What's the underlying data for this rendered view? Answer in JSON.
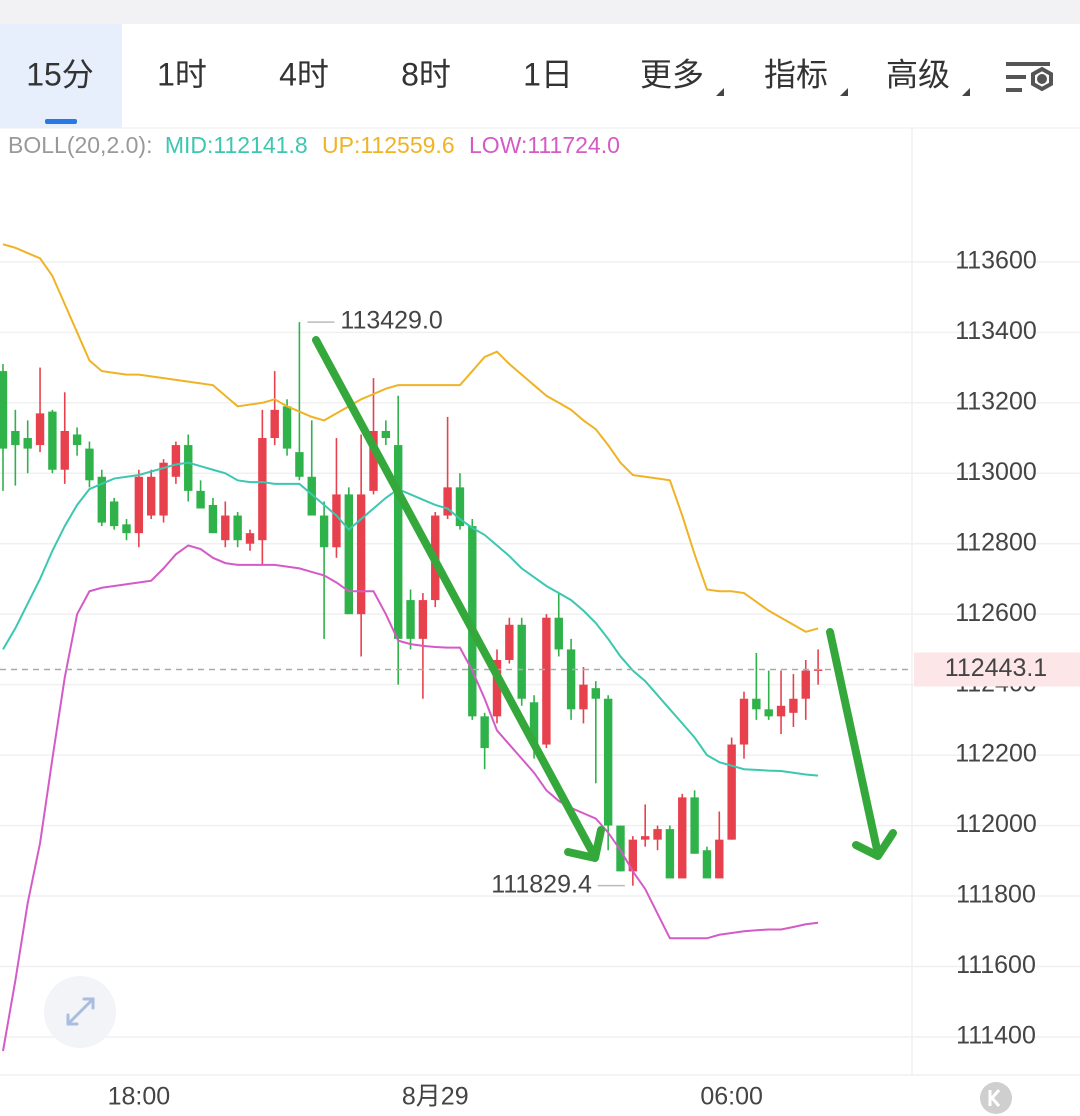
{
  "tabs": [
    "15分",
    "1时",
    "4时",
    "8时",
    "1日",
    "更多",
    "指标",
    "高级"
  ],
  "active_tab": 0,
  "indicator": "BOLL(20,2.0):",
  "chart_data": {
    "type": "candlestick",
    "categories": [
      null,
      null,
      null,
      null,
      null,
      null,
      null,
      null,
      null,
      null,
      null,
      "18:00",
      null,
      null,
      null,
      null,
      null,
      null,
      null,
      null,
      null,
      null,
      null,
      null,
      null,
      null,
      null,
      null,
      null,
      null,
      null,
      null,
      null,
      null,
      null,
      "8月29",
      null,
      null,
      null,
      null,
      null,
      null,
      null,
      null,
      null,
      null,
      null,
      null,
      null,
      null,
      null,
      null,
      null,
      null,
      null,
      null,
      null,
      null,
      null,
      "06:00",
      null,
      null,
      null,
      null,
      null,
      null,
      null
    ],
    "open": [
      113290,
      113120,
      113100,
      113080,
      113175,
      113010,
      113110,
      113070,
      112990,
      112920,
      112855,
      112830,
      112880,
      112880,
      112990,
      113080,
      112950,
      112910,
      112810,
      112880,
      112800,
      112810,
      113100,
      113190,
      113060,
      112990,
      112880,
      112790,
      112940,
      112600,
      112950,
      113120,
      113080,
      112640,
      112530,
      112640,
      112880,
      112960,
      112850,
      112310,
      112310,
      112470,
      112570,
      112350,
      112230,
      112590,
      112500,
      112330,
      112390,
      112360,
      112000,
      111870,
      111960,
      111960,
      111990,
      111850,
      112080,
      111930,
      111850,
      111960,
      112230,
      112360,
      112330,
      112310,
      112320,
      112360,
      112440
    ],
    "high": [
      113310,
      113180,
      113150,
      113300,
      113180,
      113230,
      113130,
      113090,
      113010,
      112930,
      112870,
      113010,
      113010,
      113040,
      113090,
      113110,
      112980,
      112930,
      112920,
      112890,
      112840,
      113180,
      113290,
      113210,
      113429,
      113150,
      112920,
      113100,
      112960,
      113110,
      113270,
      113150,
      113220,
      112670,
      112660,
      112890,
      113160,
      113000,
      112870,
      112320,
      112500,
      112590,
      112590,
      112370,
      112600,
      112660,
      112530,
      112450,
      112410,
      112370,
      112000,
      111970,
      112060,
      112000,
      112000,
      112090,
      112100,
      111940,
      112040,
      112250,
      112380,
      112490,
      112440,
      112440,
      112430,
      112470,
      112500
    ],
    "low": [
      112950,
      112965,
      113000,
      113060,
      113000,
      112970,
      113050,
      112960,
      112850,
      112840,
      112810,
      112790,
      112870,
      112860,
      112970,
      112920,
      112900,
      112830,
      112790,
      112790,
      112780,
      112740,
      113080,
      113050,
      112980,
      112880,
      112530,
      112760,
      112600,
      112480,
      112940,
      113080,
      112400,
      112500,
      112360,
      112620,
      112870,
      112840,
      112300,
      112160,
      112290,
      112460,
      112340,
      112190,
      112220,
      112480,
      112300,
      112290,
      112120,
      111930,
      111870,
      111829.4,
      111940,
      111930,
      111850,
      111850,
      111920,
      111850,
      111850,
      111960,
      112190,
      112300,
      112300,
      112260,
      112280,
      112300,
      112400
    ],
    "close": [
      113070,
      113080,
      113070,
      113170,
      113010,
      113120,
      113080,
      112980,
      112860,
      112850,
      112830,
      112990,
      112990,
      113030,
      113080,
      112950,
      112900,
      112830,
      112880,
      112810,
      112830,
      113100,
      113180,
      113070,
      112990,
      112880,
      112790,
      112940,
      112600,
      112940,
      113120,
      113100,
      112530,
      112530,
      112640,
      112880,
      112960,
      112850,
      112310,
      112220,
      112470,
      112570,
      112360,
      112230,
      112590,
      112500,
      112330,
      112400,
      112360,
      112000,
      111870,
      111960,
      111970,
      111990,
      111850,
      112080,
      111920,
      111850,
      111960,
      112230,
      112360,
      112330,
      112310,
      112340,
      112360,
      112440,
      112443.1
    ],
    "up_color": "#e8414e",
    "down_color": "#2fb24a",
    "series": [
      {
        "name": "MID:",
        "last_label": "112141.8",
        "color": "#3cc7b0",
        "values": [
          112500,
          112560,
          112630,
          112700,
          112780,
          112850,
          112910,
          112955,
          112970,
          112985,
          112990,
          112995,
          113005,
          113015,
          113025,
          113030,
          113020,
          113010,
          113000,
          112980,
          112975,
          112975,
          112970,
          112970,
          112970,
          112940,
          112910,
          112880,
          112840,
          112870,
          112900,
          112930,
          112955,
          112940,
          112925,
          112910,
          112900,
          112870,
          112845,
          112825,
          112795,
          112765,
          112730,
          112705,
          112680,
          112660,
          112640,
          112610,
          112575,
          112530,
          112480,
          112440,
          112410,
          112370,
          112330,
          112290,
          112250,
          112200,
          112180,
          112170,
          112160,
          112158,
          112156,
          112155,
          112150,
          112145,
          112141.8
        ]
      },
      {
        "name": "UP:",
        "last_label": "112559.6",
        "color": "#efb325",
        "values": [
          113650,
          113640,
          113625,
          113610,
          113560,
          113480,
          113400,
          113320,
          113290,
          113285,
          113280,
          113280,
          113275,
          113270,
          113265,
          113260,
          113255,
          113250,
          113220,
          113190,
          113195,
          113200,
          113210,
          113190,
          113175,
          113160,
          113150,
          113170,
          113190,
          113210,
          113225,
          113240,
          113250,
          113250,
          113250,
          113250,
          113250,
          113250,
          113290,
          113330,
          113345,
          113310,
          113280,
          113250,
          113220,
          113200,
          113180,
          113150,
          113125,
          113080,
          113030,
          112995,
          112990,
          112985,
          112980,
          112880,
          112770,
          112670,
          112665,
          112665,
          112660,
          112635,
          112610,
          112590,
          112570,
          112550,
          112559.6
        ]
      },
      {
        "name": "LOW:",
        "last_label": "111724.0",
        "color": "#d45bc6",
        "values": [
          111360,
          111560,
          111780,
          111950,
          112190,
          112420,
          112600,
          112665,
          112675,
          112680,
          112685,
          112690,
          112695,
          112730,
          112770,
          112795,
          112785,
          112760,
          112745,
          112740,
          112740,
          112740,
          112740,
          112735,
          112730,
          112720,
          112710,
          112690,
          112665,
          112665,
          112665,
          112600,
          112525,
          112515,
          112510,
          112507,
          112505,
          112505,
          112440,
          112360,
          112270,
          112230,
          112190,
          112150,
          112100,
          112070,
          112050,
          112035,
          112020,
          111980,
          111930,
          111870,
          111820,
          111750,
          111680,
          111680,
          111680,
          111680,
          111690,
          111695,
          111700,
          111703,
          111705,
          111705,
          111712,
          111720,
          111724
        ]
      }
    ],
    "ylim": [
      111292,
      113980
    ],
    "yticks": [
      111400,
      111600,
      111800,
      112000,
      112200,
      112400,
      112600,
      112800,
      113000,
      113200,
      113400,
      113600
    ],
    "grid": true,
    "current_price": 112443.1,
    "annotations": [
      {
        "index": 24,
        "value": 113429,
        "label": "113429.0",
        "side": "right"
      },
      {
        "index": 51,
        "value": 111829.4,
        "label": "111829.4",
        "side": "left"
      }
    ]
  }
}
